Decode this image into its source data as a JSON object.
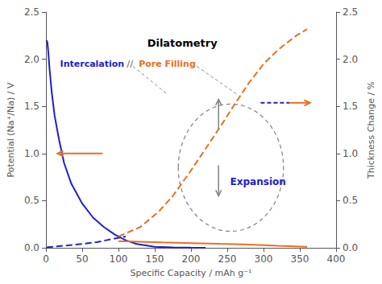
{
  "chart_data": {
    "type": "line",
    "xlabel": "Specific Capacity / mAh g⁻¹",
    "ylabel": "Potential (Na⁺/Na) / V",
    "y2label": "Thickness Change / %",
    "xlim": [
      0,
      400
    ],
    "ylim": [
      0,
      2.5
    ],
    "y2lim": [
      0,
      2.5
    ],
    "xticks": [
      0,
      50,
      100,
      150,
      200,
      250,
      300,
      350,
      400
    ],
    "yticks": [
      {
        "value": 0,
        "label": "0.0"
      },
      0.5,
      {
        "value": 1,
        "label": "1.0"
      },
      1.5,
      {
        "value": 2,
        "label": "2.0"
      },
      2.5
    ],
    "y2ticks": [
      {
        "value": 0,
        "label": "0.0"
      },
      0.5,
      {
        "value": 1,
        "label": "1.0"
      },
      1.5,
      {
        "value": 2,
        "label": "2.0"
      },
      2.5
    ],
    "grid": false,
    "series": [
      {
        "color": "#2020cc",
        "line_style": "solid",
        "x": [
          1,
          2,
          3,
          5,
          8,
          12,
          18,
          25,
          35,
          50,
          65,
          80,
          95,
          110,
          125,
          150,
          175,
          200,
          220
        ],
        "values": [
          2.2,
          2.18,
          2.1,
          1.9,
          1.65,
          1.4,
          1.15,
          0.9,
          0.68,
          0.47,
          0.32,
          0.22,
          0.14,
          0.08,
          0.04,
          0.01,
          0.005,
          0.002,
          0.0
        ]
      },
      {
        "color": "#e87020",
        "line_style": "solid",
        "x": [
          100,
          130,
          160,
          200,
          240,
          280,
          320,
          360
        ],
        "values": [
          0.07,
          0.065,
          0.058,
          0.05,
          0.042,
          0.035,
          0.022,
          0.01
        ]
      },
      {
        "color": "#2020cc",
        "line_style": "dashed",
        "axis": "y2",
        "x": [
          1,
          5,
          15,
          30,
          50,
          70,
          90,
          110
        ],
        "values": [
          0.005,
          0.008,
          0.015,
          0.025,
          0.04,
          0.06,
          0.09,
          0.12
        ]
      },
      {
        "color": "#e87020",
        "line_style": "dashed",
        "axis": "y2",
        "x": [
          100,
          130,
          155,
          175,
          200,
          220,
          240,
          260,
          280,
          300,
          320,
          345,
          360
        ],
        "values": [
          0.12,
          0.22,
          0.38,
          0.55,
          0.82,
          1.05,
          1.28,
          1.52,
          1.75,
          1.95,
          2.1,
          2.25,
          2.32
        ]
      }
    ],
    "annotations": [
      {
        "text": "Dilatometry",
        "color": "black"
      },
      {
        "text": "Intercalation",
        "color": "#2020cc"
      },
      {
        "text": "//",
        "color": "gray"
      },
      {
        "text": "Pore Filling",
        "color": "#e87020"
      },
      {
        "text": "Expansion",
        "color": "#2020cc"
      }
    ]
  }
}
